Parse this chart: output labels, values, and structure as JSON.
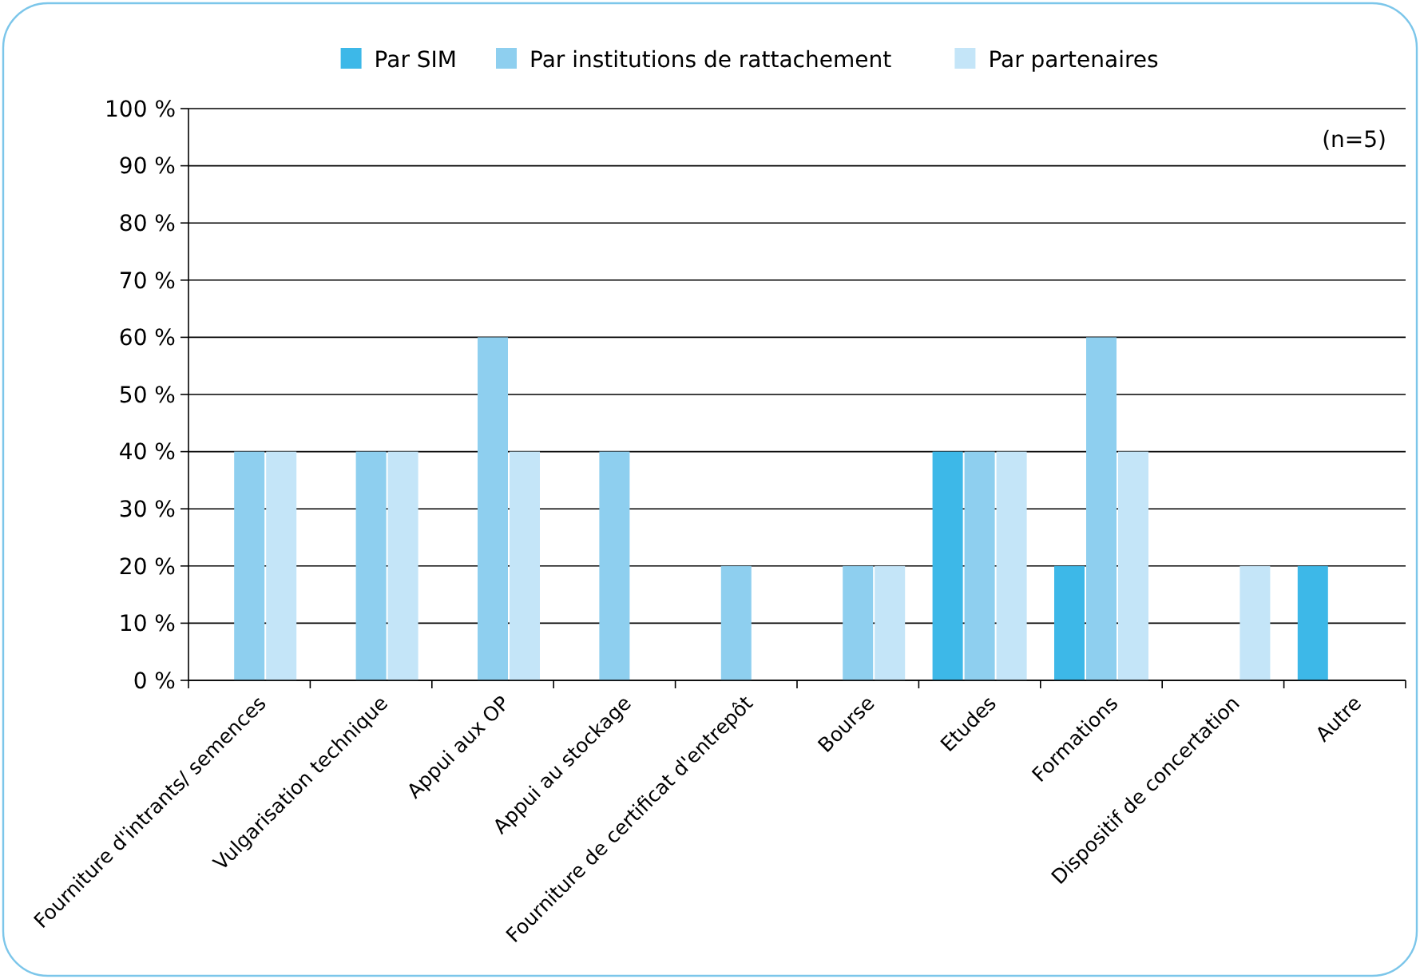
{
  "chart_data": {
    "type": "bar",
    "categories": [
      "Fourniture d'intrants/ semences",
      "Vulgarisation technique",
      "Appui aux OP",
      "Appui au stockage",
      "Fourniture de certificat d'entrepôt",
      "Bourse",
      "Etudes",
      "Formations",
      "Dispositif de concertation",
      "Autre"
    ],
    "series": [
      {
        "name": "Par SIM",
        "color": "#3db8e8",
        "values": [
          0,
          0,
          0,
          0,
          0,
          0,
          40,
          20,
          0,
          20
        ]
      },
      {
        "name": "Par institutions de rattachement",
        "color": "#8ecfef",
        "values": [
          40,
          40,
          60,
          40,
          20,
          20,
          40,
          60,
          0,
          0
        ]
      },
      {
        "name": "Par partenaires",
        "color": "#c4e5f8",
        "values": [
          40,
          40,
          40,
          0,
          0,
          20,
          40,
          40,
          20,
          0
        ]
      }
    ],
    "ylim": [
      0,
      100
    ],
    "yticks": [
      {
        "value": 0,
        "label": "0 %"
      },
      {
        "value": 10,
        "label": "10 %"
      },
      {
        "value": 20,
        "label": "20 %"
      },
      {
        "value": 30,
        "label": "30 %"
      },
      {
        "value": 40,
        "label": "40 %"
      },
      {
        "value": 50,
        "label": "50 %"
      },
      {
        "value": 60,
        "label": "60 %"
      },
      {
        "value": 70,
        "label": "70 %"
      },
      {
        "value": 80,
        "label": "80 %"
      },
      {
        "value": 90,
        "label": "90 %"
      },
      {
        "value": 100,
        "label": "100 %"
      }
    ],
    "grid": "y",
    "legend": "top",
    "annotations": [
      "(n=5)"
    ]
  }
}
